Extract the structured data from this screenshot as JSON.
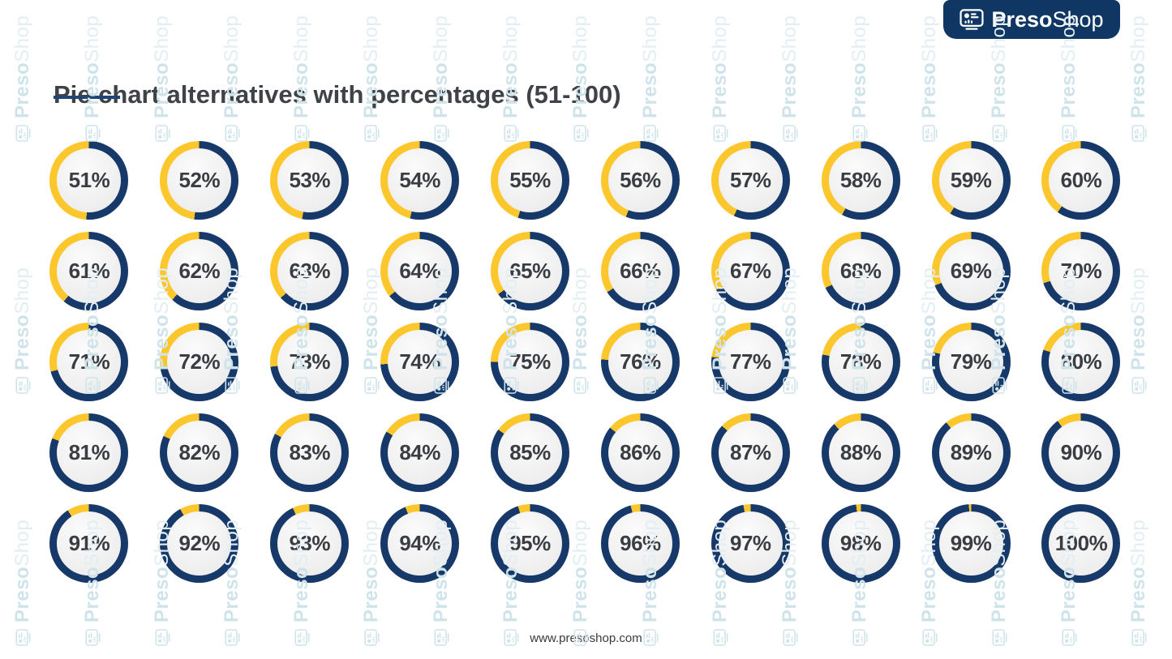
{
  "header": {
    "title": "Pie chart alternatives with percentages (51-100)"
  },
  "brand": {
    "logo_text_bold": "Preso",
    "logo_text_light": "Shop"
  },
  "watermark": {
    "text_bold": "Preso",
    "text_light": "Shop"
  },
  "footer": {
    "url": "www.presoshop.com"
  },
  "colors": {
    "ring_value_navy": "#16396a",
    "ring_remainder_yellow": "#fcc62d",
    "logo_background": "#103763",
    "title_text": "#3f4246",
    "title_underline": "#1f4575",
    "percent_label_text": "#3a3d42",
    "donut_center_fill": "#efefef",
    "watermark_bold": "#cfe4ea",
    "watermark_light": "#e3eef2"
  },
  "chart_data": {
    "type": "pie",
    "variant": "donut-progress-grid",
    "title": "Pie chart alternatives with percentages (51-100)",
    "grid": {
      "rows": 5,
      "columns": 10,
      "order": "left-to-right, top-to-bottom"
    },
    "unit": "%",
    "start_angle_deg": 0,
    "direction": "clockwise",
    "label_position": "center",
    "series_colors": {
      "value": "#16396a",
      "remainder": "#fcc62d"
    },
    "values": [
      51,
      52,
      53,
      54,
      55,
      56,
      57,
      58,
      59,
      60,
      61,
      62,
      63,
      64,
      65,
      66,
      67,
      68,
      69,
      70,
      71,
      72,
      73,
      74,
      75,
      76,
      77,
      78,
      79,
      80,
      81,
      82,
      83,
      84,
      85,
      86,
      87,
      88,
      89,
      90,
      91,
      92,
      93,
      94,
      95,
      96,
      97,
      98,
      99,
      100
    ],
    "labels": [
      "51%",
      "52%",
      "53%",
      "54%",
      "55%",
      "56%",
      "57%",
      "58%",
      "59%",
      "60%",
      "61%",
      "62%",
      "63%",
      "64%",
      "65%",
      "66%",
      "67%",
      "68%",
      "69%",
      "70%",
      "71%",
      "72%",
      "73%",
      "74%",
      "75%",
      "76%",
      "77%",
      "78%",
      "79%",
      "80%",
      "81%",
      "82%",
      "83%",
      "84%",
      "85%",
      "86%",
      "87%",
      "88%",
      "89%",
      "90%",
      "91%",
      "92%",
      "93%",
      "94%",
      "95%",
      "96%",
      "97%",
      "98%",
      "99%",
      "100%"
    ]
  }
}
